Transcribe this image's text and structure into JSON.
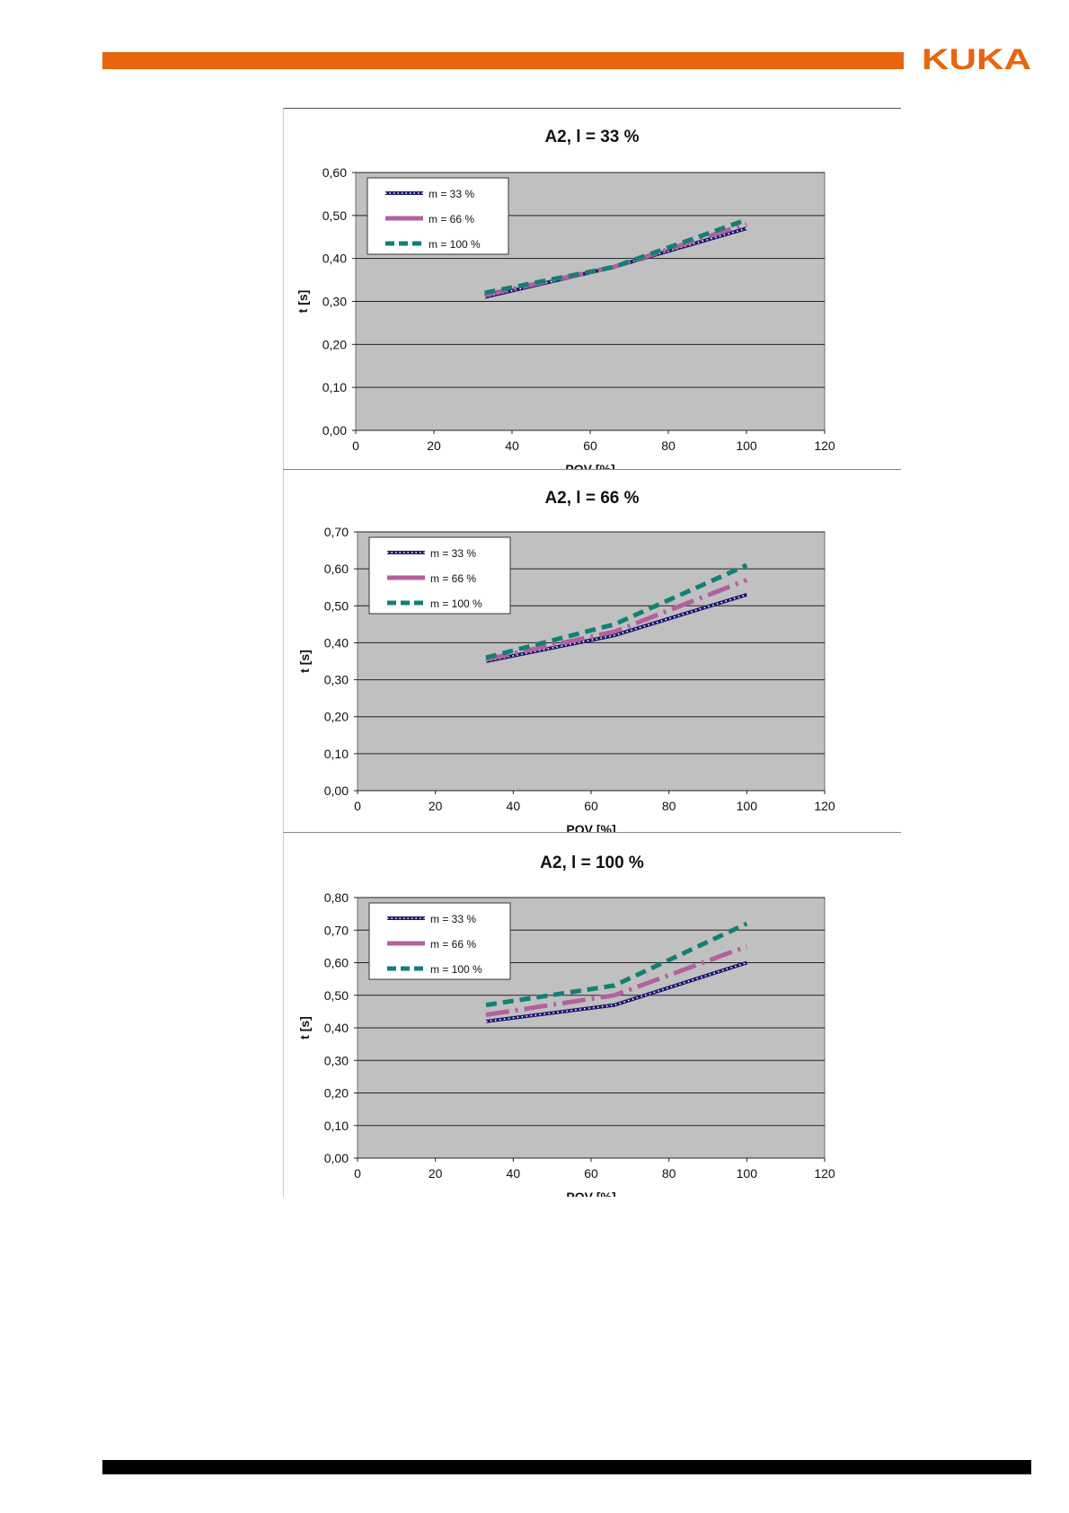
{
  "header": {
    "brand": "KUKA",
    "brand_color": "#e8650f"
  },
  "colors": {
    "series": [
      "#1e1a6e",
      "#b3609e",
      "#128073"
    ],
    "plot_bg": "#c0c0c0",
    "grid": "#222222"
  },
  "chart_data": [
    {
      "type": "line",
      "title": "A2, l = 33 %",
      "xlabel": "POV [%]",
      "ylabel": "t [s]",
      "xlim": [
        0,
        120
      ],
      "ylim": [
        0,
        0.6
      ],
      "xticks": [
        "0",
        "20",
        "40",
        "60",
        "80",
        "100",
        "120"
      ],
      "yticks": [
        "0,00",
        "0,10",
        "0,20",
        "0,30",
        "0,40",
        "0,50",
        "0,60"
      ],
      "grid": true,
      "legend_position": "top-left",
      "series": [
        {
          "name": "m = 33 %",
          "x": [
            33,
            66,
            100
          ],
          "y": [
            0.31,
            0.38,
            0.47
          ]
        },
        {
          "name": "m = 66 %",
          "x": [
            33,
            66,
            100
          ],
          "y": [
            0.315,
            0.38,
            0.48
          ]
        },
        {
          "name": "m = 100 %",
          "x": [
            33,
            66,
            100
          ],
          "y": [
            0.32,
            0.38,
            0.49
          ]
        }
      ]
    },
    {
      "type": "line",
      "title": "A2, l = 66 %",
      "xlabel": "POV [%]",
      "ylabel": "t [s]",
      "xlim": [
        0,
        120
      ],
      "ylim": [
        0,
        0.7
      ],
      "xticks": [
        "0",
        "20",
        "40",
        "60",
        "80",
        "100",
        "120"
      ],
      "yticks": [
        "0,00",
        "0,10",
        "0,20",
        "0,30",
        "0,40",
        "0,50",
        "0,60",
        "0,70"
      ],
      "grid": true,
      "legend_position": "top-left",
      "series": [
        {
          "name": "m = 33 %",
          "x": [
            33,
            66,
            100
          ],
          "y": [
            0.35,
            0.42,
            0.53
          ]
        },
        {
          "name": "m = 66 %",
          "x": [
            33,
            66,
            100
          ],
          "y": [
            0.355,
            0.43,
            0.57
          ]
        },
        {
          "name": "m = 100 %",
          "x": [
            33,
            66,
            100
          ],
          "y": [
            0.36,
            0.45,
            0.61
          ]
        }
      ]
    },
    {
      "type": "line",
      "title": "A2, l = 100 %",
      "xlabel": "POV [%]",
      "ylabel": "t [s]",
      "xlim": [
        0,
        120
      ],
      "ylim": [
        0,
        0.8
      ],
      "xticks": [
        "0",
        "20",
        "40",
        "60",
        "80",
        "100",
        "120"
      ],
      "yticks": [
        "0,00",
        "0,10",
        "0,20",
        "0,30",
        "0,40",
        "0,50",
        "0,60",
        "0,70",
        "0,80"
      ],
      "grid": true,
      "legend_position": "top-left",
      "series": [
        {
          "name": "m = 33 %",
          "x": [
            33,
            66,
            100
          ],
          "y": [
            0.42,
            0.47,
            0.6
          ]
        },
        {
          "name": "m = 66 %",
          "x": [
            33,
            66,
            100
          ],
          "y": [
            0.44,
            0.5,
            0.65
          ]
        },
        {
          "name": "m = 100 %",
          "x": [
            33,
            66,
            100
          ],
          "y": [
            0.47,
            0.53,
            0.72
          ]
        }
      ]
    }
  ]
}
